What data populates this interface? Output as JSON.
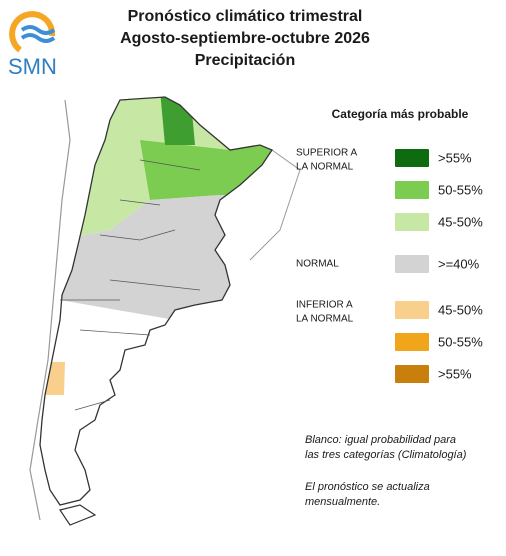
{
  "header": {
    "logo_text": "SMN",
    "title_lines": [
      "Pronóstico climático trimestral",
      "Agosto-septiembre-octubre 2026",
      "Precipitación"
    ]
  },
  "legend": {
    "title": "Categoría más probable",
    "groups": [
      {
        "label_lines": [
          "SUPERIOR A",
          "LA NORMAL"
        ],
        "items": [
          {
            "label": ">55%",
            "color": "#0f6b0f"
          },
          {
            "label": "50-55%",
            "color": "#7ccc52"
          },
          {
            "label": "45-50%",
            "color": "#c6e8a4"
          }
        ]
      },
      {
        "label_lines": [
          "NORMAL"
        ],
        "items": [
          {
            "label": ">=40%",
            "color": "#d3d3d3"
          }
        ]
      },
      {
        "label_lines": [
          "INFERIOR A",
          "LA NORMAL"
        ],
        "items": [
          {
            "label": "45-50%",
            "color": "#f9cf8c"
          },
          {
            "label": "50-55%",
            "color": "#f0a51a"
          },
          {
            "label": ">55%",
            "color": "#c97f0b"
          }
        ]
      }
    ]
  },
  "notes": [
    [
      "Blanco: igual probabilidad para",
      "las tres categorías (Climatología)"
    ],
    [
      "El pronóstico se actualiza",
      "mensualmente."
    ]
  ]
}
